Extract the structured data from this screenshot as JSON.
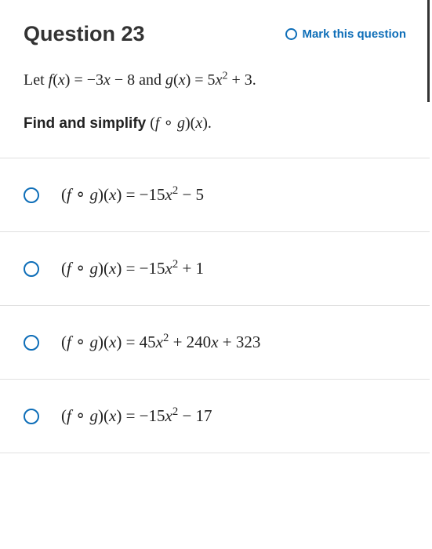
{
  "header": {
    "title": "Question 23",
    "mark_label": "Mark this question"
  },
  "prompt": {
    "line1_html": "Let <span class='italic'>f</span>(<span class='italic'>x</span>) = −3<span class='italic'>x</span> − 8 and <span class='italic'>g</span>(<span class='italic'>x</span>) = 5<span class='italic'>x</span><sup>2</sup> + 3.",
    "line2_html": "<span class='bold'>Find and simplify</span> (<span class='italic'>f</span> ∘ <span class='italic'>g</span>)(<span class='italic'>x</span>)."
  },
  "options": [
    {
      "html": "(<span class='italic'>f</span> ∘ <span class='italic'>g</span>)(<span class='italic'>x</span>) = −15<span class='italic'>x</span><sup>2</sup> − 5"
    },
    {
      "html": "(<span class='italic'>f</span> ∘ <span class='italic'>g</span>)(<span class='italic'>x</span>) = −15<span class='italic'>x</span><sup>2</sup> + 1"
    },
    {
      "html": "(<span class='italic'>f</span> ∘ <span class='italic'>g</span>)(<span class='italic'>x</span>) = 45<span class='italic'>x</span><sup>2</sup> + 240<span class='italic'>x</span> + 323"
    },
    {
      "html": "(<span class='italic'>f</span> ∘ <span class='italic'>g</span>)(<span class='italic'>x</span>) = −15<span class='italic'>x</span><sup>2</sup> − 17"
    }
  ],
  "colors": {
    "accent": "#0e6eb8",
    "text": "#222222",
    "divider": "#e0e0e0",
    "scrollbar": "#333333"
  }
}
